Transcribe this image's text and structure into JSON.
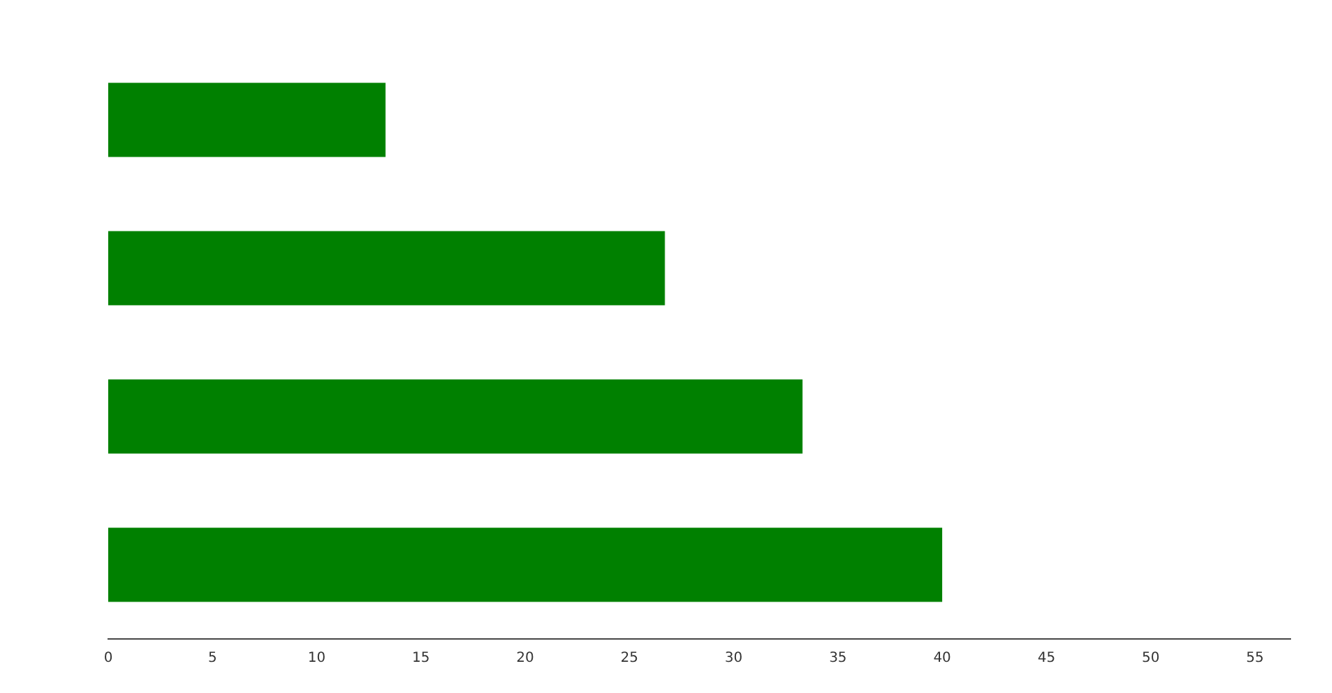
{
  "chart_data": {
    "type": "bar",
    "orientation": "horizontal",
    "categories": [
      null,
      null,
      null,
      null
    ],
    "values": [
      13.3,
      26.7,
      33.3,
      40
    ],
    "color": "#008000",
    "xlim": [
      0,
      56.7
    ],
    "xticks": [
      0,
      5,
      10,
      15,
      20,
      25,
      30,
      35,
      40,
      45,
      50,
      55
    ],
    "grid": false,
    "legend": false
  }
}
